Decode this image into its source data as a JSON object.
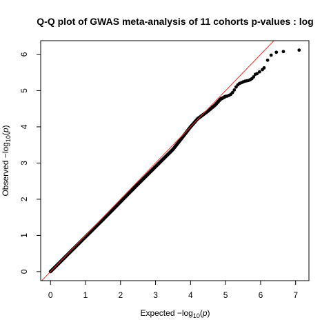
{
  "chart_data": {
    "type": "scatter",
    "title": "Q-Q plot of GWAS meta-analysis of 11 cohorts p-values : log",
    "xlabel": {
      "prefix": "Expected  −log",
      "sub": "10",
      "suffix": "(",
      "italic": "p",
      "close": ")"
    },
    "ylabel": {
      "prefix": "Observed  −log",
      "sub": "10",
      "suffix": "(",
      "italic": "p",
      "close": ")"
    },
    "xlim": [
      -0.28,
      7.38
    ],
    "ylim": [
      -0.25,
      6.38
    ],
    "x_ticks": [
      0,
      1,
      2,
      3,
      4,
      5,
      6,
      7
    ],
    "y_ticks": [
      0,
      1,
      2,
      3,
      4,
      5,
      6
    ],
    "grid": false,
    "reference_line": {
      "slope": 1,
      "intercept": 0,
      "color": "#e8322a"
    },
    "point_color": "#000000",
    "dense_band": [
      [
        0.0,
        0.0
      ],
      [
        0.5,
        0.48
      ],
      [
        1.0,
        0.96
      ],
      [
        1.5,
        1.44
      ],
      [
        2.0,
        1.93
      ],
      [
        2.5,
        2.42
      ],
      [
        3.0,
        2.9
      ],
      [
        3.5,
        3.38
      ],
      [
        3.8,
        3.75
      ],
      [
        4.0,
        4.0
      ],
      [
        4.2,
        4.22
      ],
      [
        4.45,
        4.4
      ],
      [
        4.7,
        4.6
      ],
      [
        4.85,
        4.76
      ],
      [
        5.0,
        4.84
      ]
    ],
    "series": [
      {
        "points": [
          [
            5.05,
            4.85
          ],
          [
            5.1,
            4.87
          ],
          [
            5.15,
            4.9
          ],
          [
            5.2,
            4.95
          ],
          [
            5.25,
            5.02
          ],
          [
            5.3,
            5.1
          ],
          [
            5.35,
            5.16
          ],
          [
            5.4,
            5.2
          ],
          [
            5.45,
            5.22
          ],
          [
            5.5,
            5.24
          ],
          [
            5.55,
            5.26
          ],
          [
            5.6,
            5.27
          ],
          [
            5.65,
            5.28
          ],
          [
            5.7,
            5.3
          ],
          [
            5.75,
            5.33
          ],
          [
            5.8,
            5.38
          ],
          [
            5.85,
            5.45
          ],
          [
            5.9,
            5.47
          ],
          [
            5.97,
            5.52
          ],
          [
            6.05,
            5.58
          ],
          [
            6.1,
            5.63
          ],
          [
            6.2,
            5.84
          ],
          [
            6.3,
            5.98
          ],
          [
            6.45,
            6.06
          ],
          [
            6.65,
            6.08
          ],
          [
            7.1,
            6.12
          ]
        ]
      }
    ]
  }
}
